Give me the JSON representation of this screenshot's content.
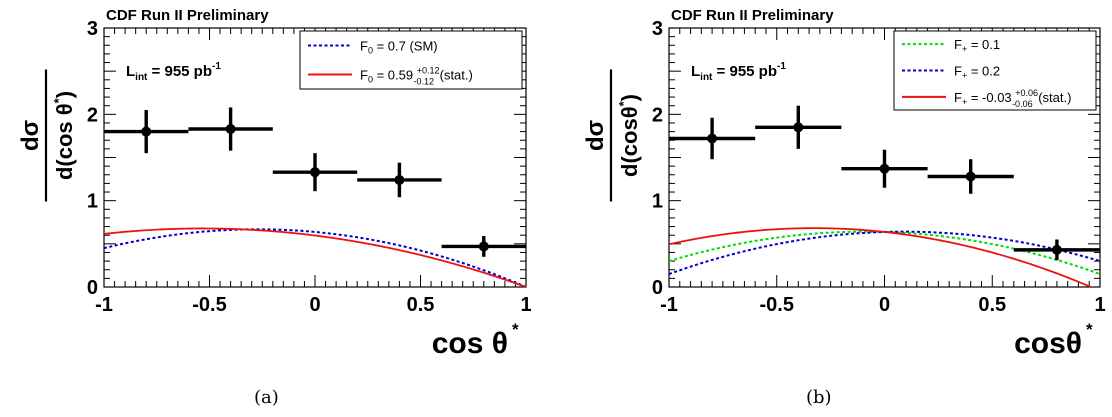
{
  "figure": {
    "captions": [
      "(a)",
      "(b)"
    ]
  },
  "chart_data": [
    {
      "type": "scatter",
      "header": "CDF Run II Preliminary",
      "ylabel": {
        "main": "dσ",
        "denominator": "d(cos θ",
        "denominator_sup": "*",
        "denominator_tail": ")"
      },
      "xlabel": {
        "main": "cos θ",
        "sup": "*"
      },
      "xlim": [
        -1,
        1
      ],
      "ylim": [
        0,
        3
      ],
      "xticks": [
        "-1",
        "-0.5",
        "0",
        "0.5",
        "1"
      ],
      "yticks": [
        "0",
        "1",
        "2",
        "3"
      ],
      "annotation": {
        "text": "L",
        "sub": "int",
        "rest": " = 955 pb",
        "sup": "-1"
      },
      "data_points": {
        "x": [
          -0.8,
          -0.4,
          0.0,
          0.4,
          0.8
        ],
        "y": [
          1.8,
          1.83,
          1.33,
          1.24,
          0.47
        ],
        "xerr": [
          0.2,
          0.2,
          0.2,
          0.2,
          0.2
        ],
        "yerr": [
          0.25,
          0.25,
          0.22,
          0.2,
          0.12
        ]
      },
      "curves": [
        {
          "legend": {
            "text": "F",
            "sub": "0",
            "rest": " = 0.7 (SM)"
          },
          "color": "#0000cc",
          "dash": "dotted",
          "F0": 0.7,
          "Fplus": 0.0
        },
        {
          "legend": {
            "text": "F",
            "sub": "0",
            "rest": " = 0.59 ",
            "sup": "+0.12",
            "suberr": "-0.12",
            "tail": " (stat.)"
          },
          "color": "#ee1111",
          "dash": "solid",
          "F0": 0.59,
          "Fplus": 0.0
        }
      ]
    },
    {
      "type": "scatter",
      "header": "CDF Run II Preliminary",
      "ylabel": {
        "main": "dσ",
        "denominator": "d(cosθ",
        "denominator_sup": "*",
        "denominator_tail": ")"
      },
      "xlabel": {
        "main": "cosθ",
        "sup": "*"
      },
      "xlim": [
        -1,
        1
      ],
      "ylim": [
        0,
        3
      ],
      "xticks": [
        "-1",
        "-0.5",
        "0",
        "0.5",
        "1"
      ],
      "yticks": [
        "0",
        "1",
        "2",
        "3"
      ],
      "annotation": {
        "text": "L",
        "sub": "int",
        "rest": " = 955 pb",
        "sup": "-1"
      },
      "data_points": {
        "x": [
          -0.8,
          -0.4,
          0.0,
          0.4,
          0.8
        ],
        "y": [
          1.72,
          1.85,
          1.37,
          1.28,
          0.43
        ],
        "xerr": [
          0.2,
          0.2,
          0.2,
          0.2,
          0.2
        ],
        "yerr": [
          0.24,
          0.25,
          0.22,
          0.2,
          0.12
        ]
      },
      "curves": [
        {
          "legend": {
            "text": "F",
            "sub": "+",
            "rest": " = 0.1"
          },
          "color": "#00dd00",
          "dash": "dotted",
          "F0": 0.7,
          "Fplus": 0.1
        },
        {
          "legend": {
            "text": "F",
            "sub": "+",
            "rest": " = 0.2"
          },
          "color": "#0000cc",
          "dash": "dotted",
          "F0": 0.7,
          "Fplus": 0.2
        },
        {
          "legend": {
            "text": "F",
            "sub": "+",
            "rest": " = -0.03 ",
            "sup": "+0.06",
            "suberr": "-0.06",
            "tail": " (stat.)"
          },
          "color": "#ee1111",
          "dash": "solid",
          "F0": 0.7,
          "Fplus": -0.03
        }
      ]
    }
  ]
}
